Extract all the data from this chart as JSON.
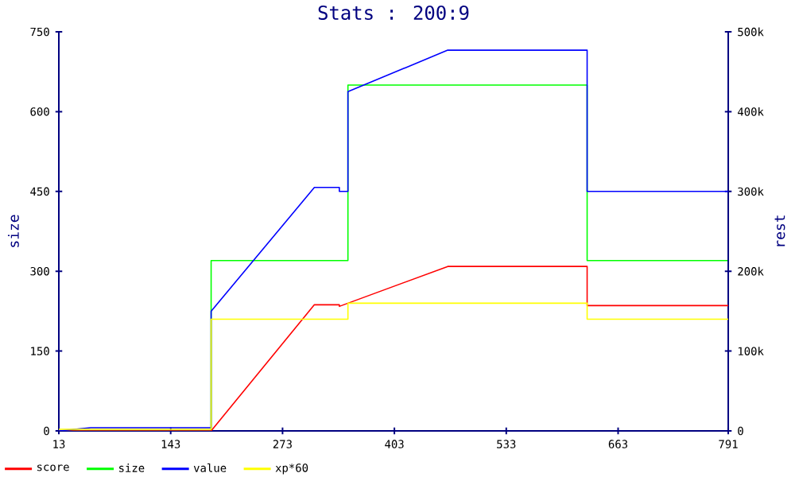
{
  "chart_data": {
    "type": "line",
    "title": "Stats : 200:9",
    "ylabel": "size",
    "y2label": "rest",
    "xlim": [
      13,
      791
    ],
    "xticks": [
      13,
      143,
      273,
      403,
      533,
      663,
      791
    ],
    "ylim": [
      0,
      750
    ],
    "yticks": [
      0,
      150,
      300,
      450,
      600,
      750
    ],
    "y2lim": [
      0,
      500000
    ],
    "y2ticks": [
      {
        "value": 0,
        "label": "0"
      },
      {
        "value": 100000,
        "label": "100k"
      },
      {
        "value": 200000,
        "label": "200k"
      },
      {
        "value": 300000,
        "label": "300k"
      },
      {
        "value": 400000,
        "label": "400k"
      },
      {
        "value": 500000,
        "label": "500k"
      }
    ],
    "legend": "bottom",
    "grid": false,
    "series": [
      {
        "name": "score",
        "color": "#ff0000",
        "axis": "y2",
        "x": [
          13,
          190,
          310,
          339,
          339,
          465,
          627,
          627,
          791
        ],
        "values": [
          0,
          0,
          158000,
          158000,
          156000,
          206000,
          206000,
          157000,
          157000
        ]
      },
      {
        "name": "size",
        "color": "#00ff00",
        "axis": "y",
        "x": [
          13,
          190,
          190,
          349,
          349,
          627,
          627,
          791
        ],
        "values": [
          0,
          0,
          320,
          320,
          650,
          650,
          320,
          320
        ]
      },
      {
        "name": "value",
        "color": "#0000ff",
        "axis": "y2",
        "x": [
          13,
          50,
          190,
          190,
          310,
          339,
          339,
          349,
          349,
          465,
          627,
          627,
          791
        ],
        "values": [
          0,
          4000,
          4000,
          150000,
          305000,
          305000,
          300000,
          300000,
          425000,
          477000,
          477000,
          300000,
          300000
        ]
      },
      {
        "name": "xp*60",
        "color": "#ffff00",
        "axis": "y2",
        "x": [
          13,
          190,
          190,
          349,
          349,
          627,
          627,
          791
        ],
        "values": [
          2000,
          2000,
          140000,
          140000,
          160000,
          160000,
          140000,
          140000
        ]
      }
    ]
  }
}
